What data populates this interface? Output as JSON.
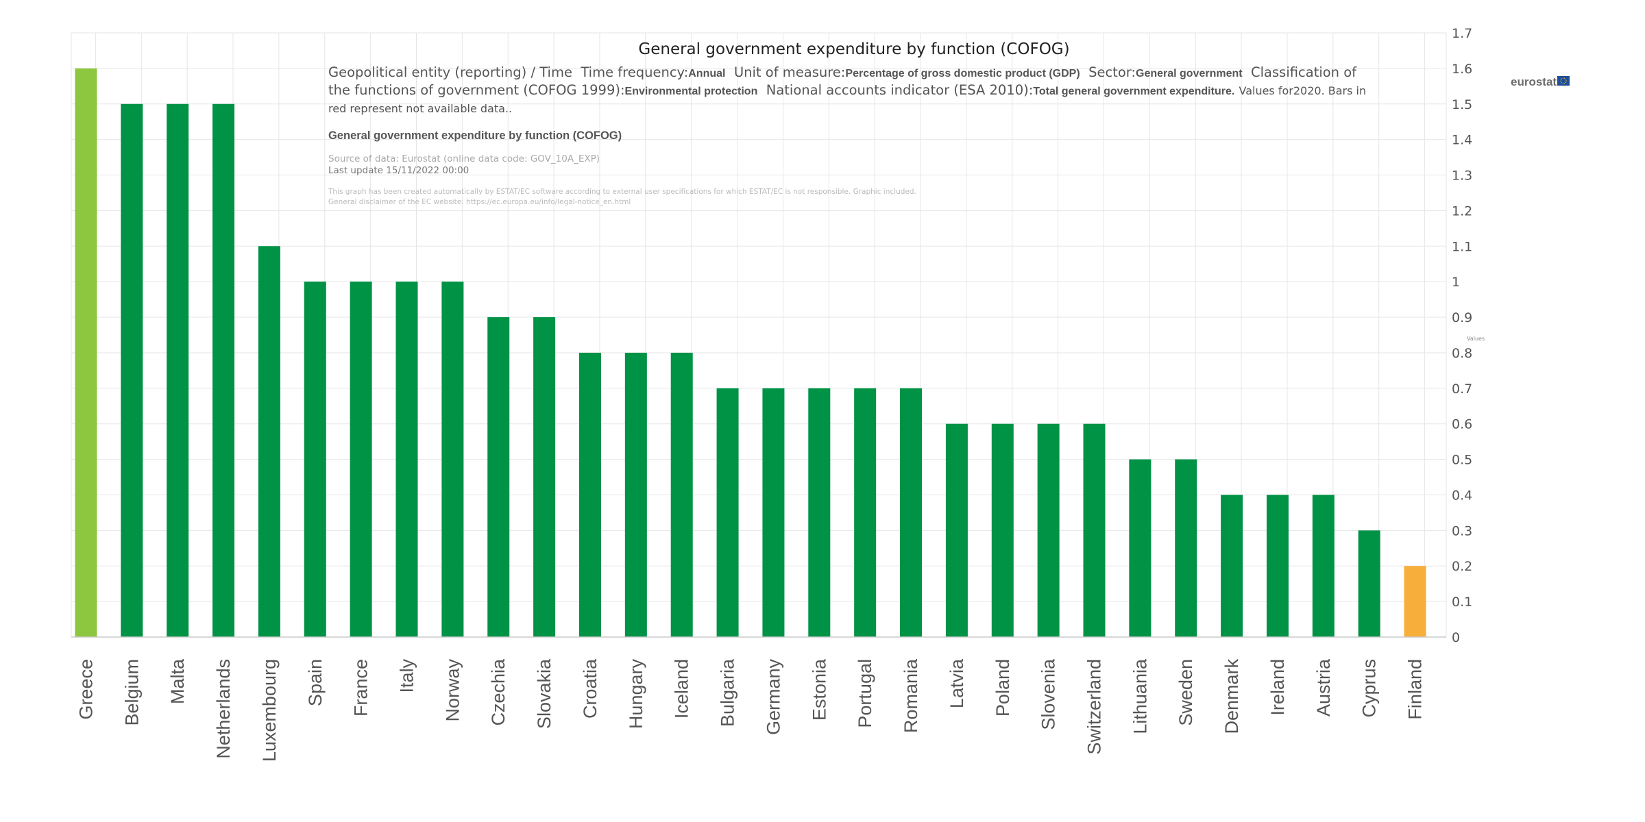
{
  "chart_data": {
    "type": "bar",
    "title": "General government expenditure by function (COFOG)",
    "ylabel": "Values",
    "ylim": [
      0,
      1.7
    ],
    "ytick_labels": [
      "0",
      "0.1",
      "0.2",
      "0.3",
      "0.4",
      "0.5",
      "0.6",
      "0.7",
      "0.8",
      "0.9",
      "1",
      "1.1",
      "1.2",
      "1.3",
      "1.4",
      "1.5",
      "1.6",
      "1.7"
    ],
    "grid": true,
    "yaxis_position": "right",
    "categories": [
      "Greece",
      "Belgium",
      "Malta",
      "Netherlands",
      "Luxembourg",
      "Spain",
      "France",
      "Italy",
      "Norway",
      "Czechia",
      "Slovakia",
      "Croatia",
      "Hungary",
      "Iceland",
      "Bulgaria",
      "Germany",
      "Estonia",
      "Portugal",
      "Romania",
      "Latvia",
      "Poland",
      "Slovenia",
      "Switzerland",
      "Lithuania",
      "Sweden",
      "Denmark",
      "Ireland",
      "Austria",
      "Cyprus",
      "Finland"
    ],
    "values": [
      1.6,
      1.5,
      1.5,
      1.5,
      1.1,
      1.0,
      1.0,
      1.0,
      1.0,
      0.9,
      0.9,
      0.8,
      0.8,
      0.8,
      0.7,
      0.7,
      0.7,
      0.7,
      0.7,
      0.6,
      0.6,
      0.6,
      0.6,
      0.5,
      0.5,
      0.4,
      0.4,
      0.4,
      0.3,
      0.2
    ],
    "bar_colors": {
      "default": "#009245",
      "highest": "#8dc63f",
      "lowest": "#f7ae3b"
    },
    "grid_color": "#e6e6e6"
  },
  "subtitle": {
    "geo_label": "Geopolitical entity (reporting) / Time",
    "freq_label": "Time frequency:",
    "freq_value": "Annual",
    "unit_label": "Unit of measure:",
    "unit_value": "Percentage of gross domestic product (GDP)",
    "sector_label": "Sector:",
    "sector_value": "General government",
    "class_label": "Classification of the functions of government (COFOG 1999):",
    "class_value": "Environmental protection",
    "indicator_label": "National accounts indicator (ESA 2010):",
    "indicator_value": "Total general government expenditure.",
    "values_for": "Values for2020. Bars in red represent not available data.."
  },
  "chart_subtitle": "General government expenditure by function (COFOG)",
  "source": "Source of data: Eurostat (online data code: GOV_10A_EXP)",
  "last_update": "Last update 15/11/2022 00:00",
  "disclaimer_1": "This graph has been created automatically by ESTAT/EC software according to external user specifications for which ESTAT/EC is not responsible. Graphic included.",
  "disclaimer_2": "General disclaimer of the EC website: https://ec.europa.eu/info/legal-notice_en.html",
  "logo": {
    "text": "eurostat",
    "flag_color": "#1f4e9a",
    "star_color": "#ffd200"
  }
}
